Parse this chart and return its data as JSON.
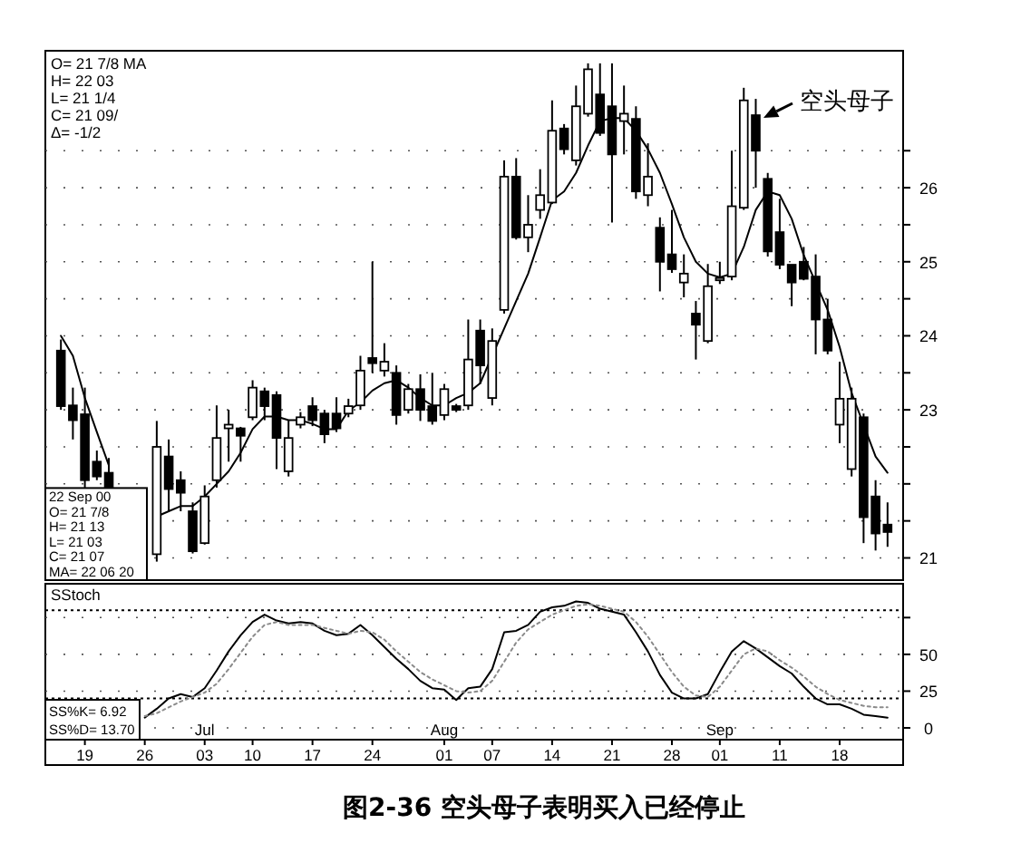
{
  "chart_data": [
    {
      "type": "candlestick",
      "title": "图2-36  空头母子表明买入已经停止",
      "subtitle": "22 Sep 00\nO=  21 7/8\nH=  21 13\nL=  21 03\nC=  21 07\nMA= 22 06 20",
      "categories": [
        null,
        null,
        null,
        null,
        null,
        null,
        null,
        null,
        null,
        null,
        null,
        null,
        null,
        null,
        null,
        null,
        null,
        null,
        null,
        null,
        null,
        null,
        null,
        null,
        null,
        null,
        null,
        null,
        null,
        null,
        null,
        null,
        null,
        null,
        null,
        null,
        null,
        null,
        null,
        null,
        null,
        null,
        null,
        null,
        null,
        null,
        null,
        null,
        null,
        null,
        null,
        null,
        null,
        null,
        null,
        null,
        null,
        null,
        null,
        null,
        null,
        null,
        null,
        null,
        null,
        null,
        null,
        null,
        null,
        null
      ],
      "ohlc": [
        [
          23.8,
          23.95,
          23.0,
          23.05
        ],
        [
          23.06,
          23.3,
          22.6,
          22.86
        ],
        [
          22.94,
          23.3,
          21.95,
          22.05
        ],
        [
          22.3,
          22.45,
          22.05,
          22.1
        ],
        [
          22.15,
          22.35,
          21.95,
          21.95
        ],
        null,
        null,
        null,
        [
          21.05,
          22.85,
          20.95,
          22.5
        ],
        [
          22.37,
          22.6,
          21.63,
          21.93
        ],
        [
          22.05,
          22.17,
          21.63,
          21.88
        ],
        [
          21.63,
          21.75,
          21.06,
          21.09
        ],
        [
          21.2,
          21.98,
          21.18,
          21.83
        ],
        [
          22.05,
          23.06,
          21.95,
          22.62
        ],
        [
          22.75,
          23.0,
          22.3,
          22.8
        ],
        [
          22.75,
          22.77,
          22.3,
          22.65
        ],
        [
          22.9,
          23.4,
          22.86,
          23.3
        ],
        [
          23.25,
          23.3,
          22.86,
          23.05
        ],
        [
          23.2,
          23.25,
          22.2,
          22.62
        ],
        [
          22.17,
          22.86,
          22.1,
          22.62
        ],
        [
          22.8,
          22.97,
          22.75,
          22.9
        ],
        [
          23.05,
          23.17,
          22.78,
          22.86
        ],
        [
          22.95,
          23.0,
          22.55,
          22.67
        ],
        [
          22.95,
          23.17,
          22.7,
          22.75
        ],
        [
          22.95,
          23.15,
          22.9,
          23.05
        ],
        [
          23.06,
          23.73,
          23.0,
          23.53
        ],
        [
          23.7,
          25.0,
          23.5,
          23.63
        ],
        [
          23.53,
          23.9,
          23.45,
          23.65
        ],
        [
          23.5,
          23.6,
          22.8,
          22.93
        ],
        [
          23.0,
          23.35,
          22.95,
          23.28
        ],
        [
          23.28,
          23.48,
          22.85,
          23.0
        ],
        [
          23.05,
          23.5,
          22.8,
          22.85
        ],
        [
          22.93,
          23.35,
          22.86,
          23.28
        ],
        [
          23.05,
          23.08,
          22.97,
          23.0
        ],
        [
          23.06,
          24.22,
          23.0,
          23.68
        ],
        [
          24.07,
          24.22,
          23.35,
          23.6
        ],
        [
          23.16,
          24.1,
          23.06,
          23.93
        ],
        [
          24.35,
          26.37,
          24.3,
          26.15
        ],
        [
          26.15,
          26.4,
          25.3,
          25.33
        ],
        [
          25.33,
          25.9,
          25.13,
          25.5
        ],
        [
          25.7,
          26.25,
          25.58,
          25.9
        ],
        [
          25.8,
          27.18,
          25.78,
          26.77
        ],
        [
          26.8,
          26.86,
          26.45,
          26.52
        ],
        [
          26.37,
          27.38,
          26.3,
          27.1
        ],
        [
          27.0,
          27.68,
          26.96,
          27.6
        ],
        [
          27.26,
          27.68,
          26.7,
          26.74
        ],
        [
          27.1,
          27.68,
          25.53,
          26.45
        ],
        [
          26.9,
          27.38,
          26.45,
          27.0
        ],
        [
          26.93,
          27.1,
          25.85,
          25.95
        ],
        [
          25.9,
          26.6,
          25.75,
          26.15
        ],
        [
          25.46,
          25.6,
          24.6,
          25.0
        ],
        [
          25.1,
          25.7,
          24.85,
          24.9
        ],
        [
          24.72,
          25.1,
          24.52,
          24.84
        ],
        [
          24.3,
          24.47,
          23.68,
          24.15
        ],
        [
          23.93,
          24.97,
          23.9,
          24.67
        ],
        [
          24.75,
          25.0,
          24.7,
          24.78
        ],
        [
          24.8,
          26.5,
          24.75,
          25.75
        ],
        [
          25.73,
          27.35,
          25.7,
          27.18
        ],
        [
          26.98,
          27.2,
          26.0,
          26.5
        ],
        [
          26.12,
          26.2,
          25.07,
          25.14
        ],
        [
          25.4,
          25.85,
          24.9,
          24.96
        ],
        [
          24.96,
          24.96,
          24.4,
          24.72
        ],
        [
          25.0,
          25.2,
          24.75,
          24.77
        ],
        [
          24.8,
          25.1,
          23.75,
          24.22
        ],
        [
          24.22,
          24.5,
          23.75,
          23.8
        ],
        [
          22.8,
          23.65,
          22.55,
          23.15
        ],
        [
          22.2,
          23.3,
          22.1,
          23.15
        ],
        [
          22.9,
          22.95,
          21.2,
          21.55
        ],
        [
          21.83,
          22.05,
          21.1,
          21.33
        ],
        [
          21.45,
          21.75,
          21.15,
          21.35
        ]
      ],
      "series": [
        {
          "type": "line",
          "color": "#000000",
          "values": [
            24.0,
            23.73,
            23.16,
            22.7,
            22.25,
            null,
            null,
            null,
            21.56,
            21.63,
            21.7,
            21.7,
            21.83,
            22.0,
            22.17,
            22.42,
            22.74,
            22.91,
            22.91,
            22.86,
            22.86,
            22.81,
            22.74,
            22.74,
            22.99,
            23.1,
            23.26,
            23.36,
            23.4,
            23.3,
            23.16,
            23.06,
            23.06,
            23.16,
            23.23,
            23.36,
            23.73,
            24.1,
            24.47,
            24.84,
            25.33,
            25.83,
            25.95,
            26.2,
            26.57,
            26.9,
            26.94,
            26.94,
            26.77,
            26.52,
            26.2,
            25.78,
            25.33,
            25.0,
            24.84,
            24.79,
            24.84,
            25.2,
            25.7,
            25.95,
            25.9,
            25.58,
            25.09,
            24.72,
            24.35,
            23.85,
            23.23,
            22.8,
            22.37,
            22.15
          ]
        }
      ],
      "ylim": [
        20.7,
        27.85
      ],
      "yticks": [
        21,
        {
          "value": 21.5,
          "label": null
        },
        {
          "value": 22,
          "label": null
        },
        {
          "value": 22.5,
          "label": null
        },
        23,
        {
          "value": 23.5,
          "label": null
        },
        24,
        {
          "value": 24.5,
          "label": null
        },
        25,
        {
          "value": 25.5,
          "label": null
        },
        26,
        {
          "value": 26.5,
          "label": null
        }
      ],
      "grid": "y",
      "annotations": [
        "O=  21 7/8   MA",
        "H=  22 03",
        "L=  21 1/4",
        "C=  21 09/",
        "Δ=   -1/2",
        "空头母子"
      ]
    },
    {
      "type": "line",
      "title": "SStoch",
      "categories": [
        null,
        null,
        "19",
        null,
        null,
        null,
        null,
        "26",
        null,
        null,
        null,
        null,
        "Jul\n03",
        null,
        null,
        null,
        "10",
        null,
        null,
        null,
        null,
        "17",
        null,
        null,
        null,
        null,
        "24",
        null,
        null,
        null,
        null,
        null,
        "Aug\n01",
        null,
        null,
        null,
        "07",
        null,
        null,
        null,
        null,
        "14",
        null,
        null,
        null,
        null,
        "21",
        null,
        null,
        null,
        null,
        "28",
        null,
        null,
        null,
        "Sep\n01",
        null,
        null,
        null,
        null,
        "11",
        null,
        null,
        null,
        null,
        "18",
        null,
        null,
        null,
        null
      ],
      "series": [
        {
          "color": "#000000",
          "line_style": "solid",
          "values": [
            null,
            null,
            null,
            null,
            null,
            null,
            null,
            7,
            13,
            20,
            23,
            21,
            27,
            39,
            52,
            63,
            72,
            77,
            73,
            71,
            72,
            71,
            66,
            63,
            64,
            70,
            63,
            55,
            47,
            40,
            32,
            27,
            26,
            19,
            27,
            28,
            40,
            65,
            66,
            70,
            79,
            82,
            83,
            86,
            85,
            81,
            79,
            77,
            65,
            52,
            36,
            24,
            20,
            20,
            23,
            38,
            52,
            59,
            54,
            48,
            42,
            37,
            28,
            20,
            16,
            16,
            13,
            9,
            8,
            7
          ]
        },
        {
          "color": "#8a8a8a",
          "line_style": "dotted",
          "values": [
            null,
            null,
            null,
            null,
            null,
            null,
            null,
            8,
            10,
            14,
            18,
            21,
            24,
            30,
            40,
            51,
            62,
            70,
            72,
            70,
            70,
            70,
            68,
            66,
            64,
            66,
            65,
            60,
            52,
            45,
            38,
            33,
            29,
            25,
            24,
            25,
            32,
            45,
            58,
            67,
            72,
            77,
            80,
            83,
            84,
            83,
            81,
            79,
            72,
            62,
            50,
            38,
            28,
            22,
            21,
            28,
            39,
            50,
            54,
            52,
            46,
            41,
            35,
            28,
            23,
            19,
            17,
            15,
            14,
            14
          ]
        }
      ],
      "ylim": [
        -8,
        98
      ],
      "yticks": [
        0,
        25,
        50,
        {
          "value": 75,
          "label": null
        }
      ],
      "grid": "y",
      "ref_lines": [
        {
          "axis": "y",
          "value": 80,
          "line_style": "dotted"
        },
        {
          "axis": "y",
          "value": 20,
          "line_style": "dotted"
        }
      ],
      "annotations": [
        "SS%K=  6.92",
        "SS%D= 13.70"
      ]
    }
  ]
}
